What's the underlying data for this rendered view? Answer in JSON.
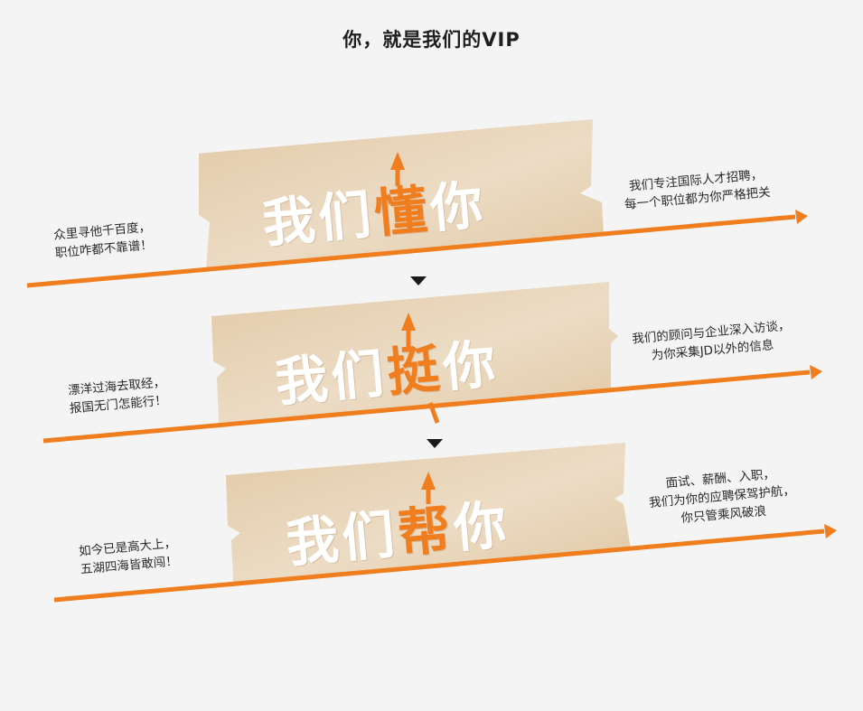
{
  "page": {
    "title": "你，就是我们的VIP"
  },
  "colors": {
    "accent": "#f07d1e",
    "banner": "#e6d3b8",
    "arrow": "#1a1a1a",
    "background": "#f4f4f4"
  },
  "sections": [
    {
      "hero_prefix": "我们",
      "hero_accent": "懂",
      "hero_suffix": "你",
      "left_lines": [
        "众里寻他千百度，",
        "职位咋都不靠谱！"
      ],
      "right_lines": [
        "我们专注国际人才招聘，",
        "每一个职位都为你严格把关"
      ]
    },
    {
      "hero_prefix": "我们",
      "hero_accent": "挺",
      "hero_suffix": "你",
      "left_lines": [
        "漂洋过海去取经，",
        "报国无门怎能行！"
      ],
      "right_lines": [
        "我们的顾问与企业深入访谈，",
        "为你采集JD以外的信息"
      ]
    },
    {
      "hero_prefix": "我们",
      "hero_accent": "帮",
      "hero_suffix": "你",
      "left_lines": [
        "如今已是高大上，",
        "五湖四海皆敢闯！"
      ],
      "right_lines": [
        "面试、薪酬、入职，",
        "我们为你的应聘保驾护航，",
        "你只管乘风破浪"
      ]
    }
  ]
}
